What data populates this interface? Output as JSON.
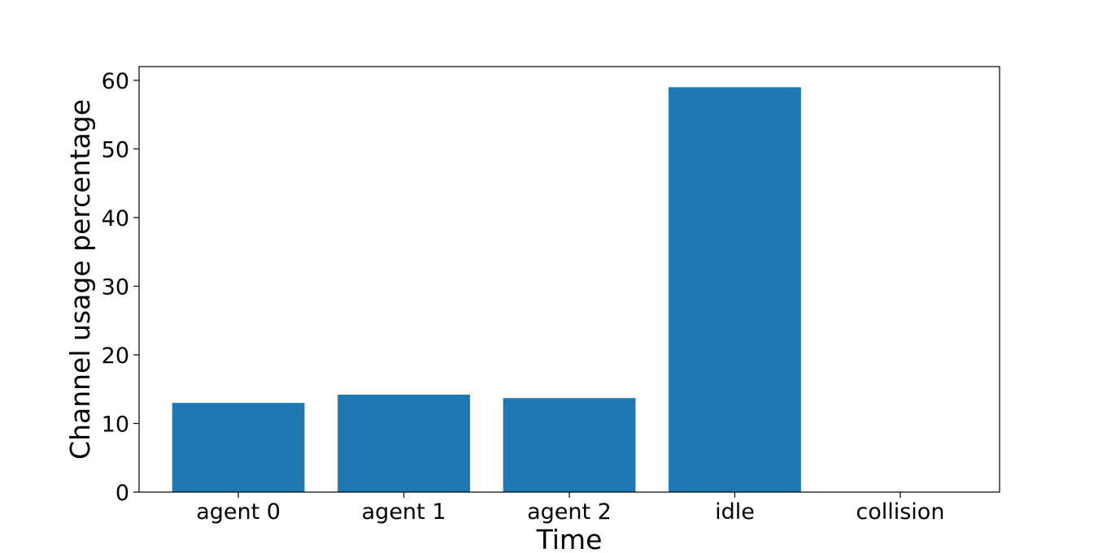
{
  "chart_data": {
    "type": "bar",
    "categories": [
      "agent 0",
      "agent 1",
      "agent 2",
      "idle",
      "collision"
    ],
    "values": [
      13.0,
      14.2,
      13.7,
      59.0,
      0.0
    ],
    "title": "",
    "xlabel": "Time",
    "ylabel": "Channel usage percentage",
    "ylim": [
      0,
      62
    ],
    "yticks": [
      0,
      10,
      20,
      30,
      40,
      50,
      60
    ],
    "grid": false,
    "bar_color": "#1f77b4"
  }
}
